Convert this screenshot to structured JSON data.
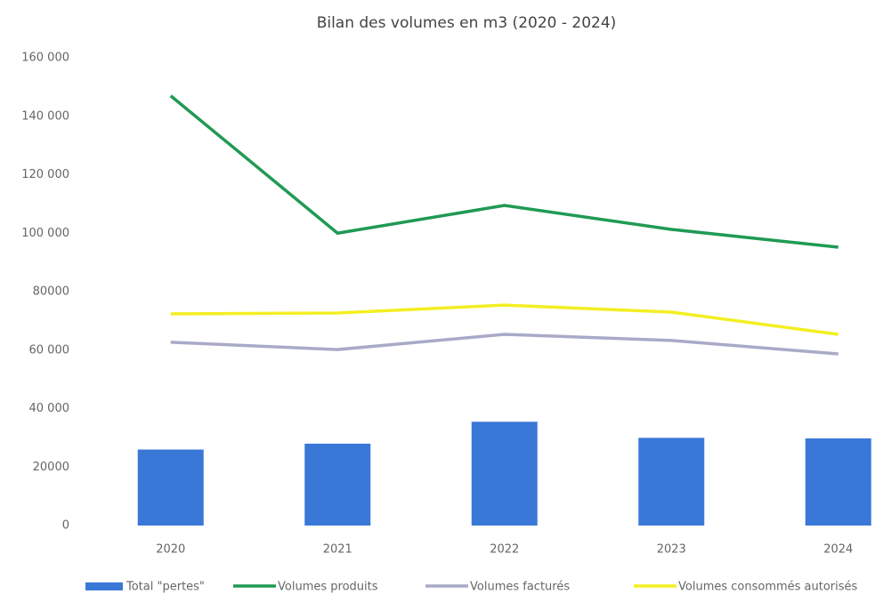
{
  "chart_data": {
    "type": "combo",
    "title": "Bilan des volumes en m3 (2020 - 2024)",
    "categories": [
      "2020",
      "2021",
      "2022",
      "2023",
      "2024"
    ],
    "series": [
      {
        "name": "Total \"pertes\"",
        "type": "bar",
        "color": "#3a78d8",
        "values": [
          26000,
          28000,
          35500,
          30000,
          29800
        ]
      },
      {
        "name": "Volumes produits",
        "type": "line",
        "color": "#1f9a54",
        "values": [
          147000,
          100000,
          109500,
          101300,
          95200
        ]
      },
      {
        "name": "Volumes facturés",
        "type": "line",
        "color": "#a9a9c8",
        "values": [
          62700,
          60200,
          65400,
          63300,
          58700
        ]
      },
      {
        "name": "Volumes consommés autorisés",
        "type": "line",
        "color": "#f3ef22",
        "values": [
          72400,
          72700,
          75400,
          73000,
          65400
        ]
      }
    ],
    "ylim": [
      0,
      160000
    ],
    "yticks": [
      0,
      {
        "value": 20000,
        "label": "20000"
      },
      {
        "value": 40000,
        "label": "40 000"
      },
      {
        "value": 60000,
        "label": "60 000"
      },
      {
        "value": 80000,
        "label": "80000"
      },
      {
        "value": 100000,
        "label": "100 000"
      },
      {
        "value": 120000,
        "label": "120 000"
      },
      {
        "value": 140000,
        "label": "140 000"
      },
      {
        "value": 160000,
        "label": "160 000"
      }
    ],
    "legend": "bottom"
  }
}
